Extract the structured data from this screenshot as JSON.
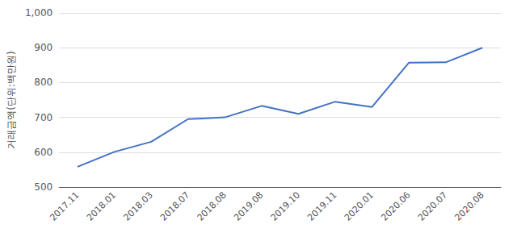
{
  "chart_data": {
    "type": "line",
    "categories": [
      "2017.11",
      "2018.01",
      "2018.03",
      "2018.07",
      "2018.08",
      "2019.08",
      "2019.10",
      "2019.11",
      "2020.01",
      "2020.06",
      "2020.07",
      "2020.08"
    ],
    "values": [
      558,
      601,
      630,
      695,
      700,
      733,
      710,
      745,
      730,
      857,
      858,
      900
    ],
    "color": "#4472c4",
    "y_label": "거래금액(단위:백만원)",
    "ylim": [
      500,
      1000
    ],
    "yticks": [
      500,
      600,
      700,
      800,
      900,
      {
        "value": 1000,
        "label": "1,000"
      }
    ],
    "grid": true
  }
}
